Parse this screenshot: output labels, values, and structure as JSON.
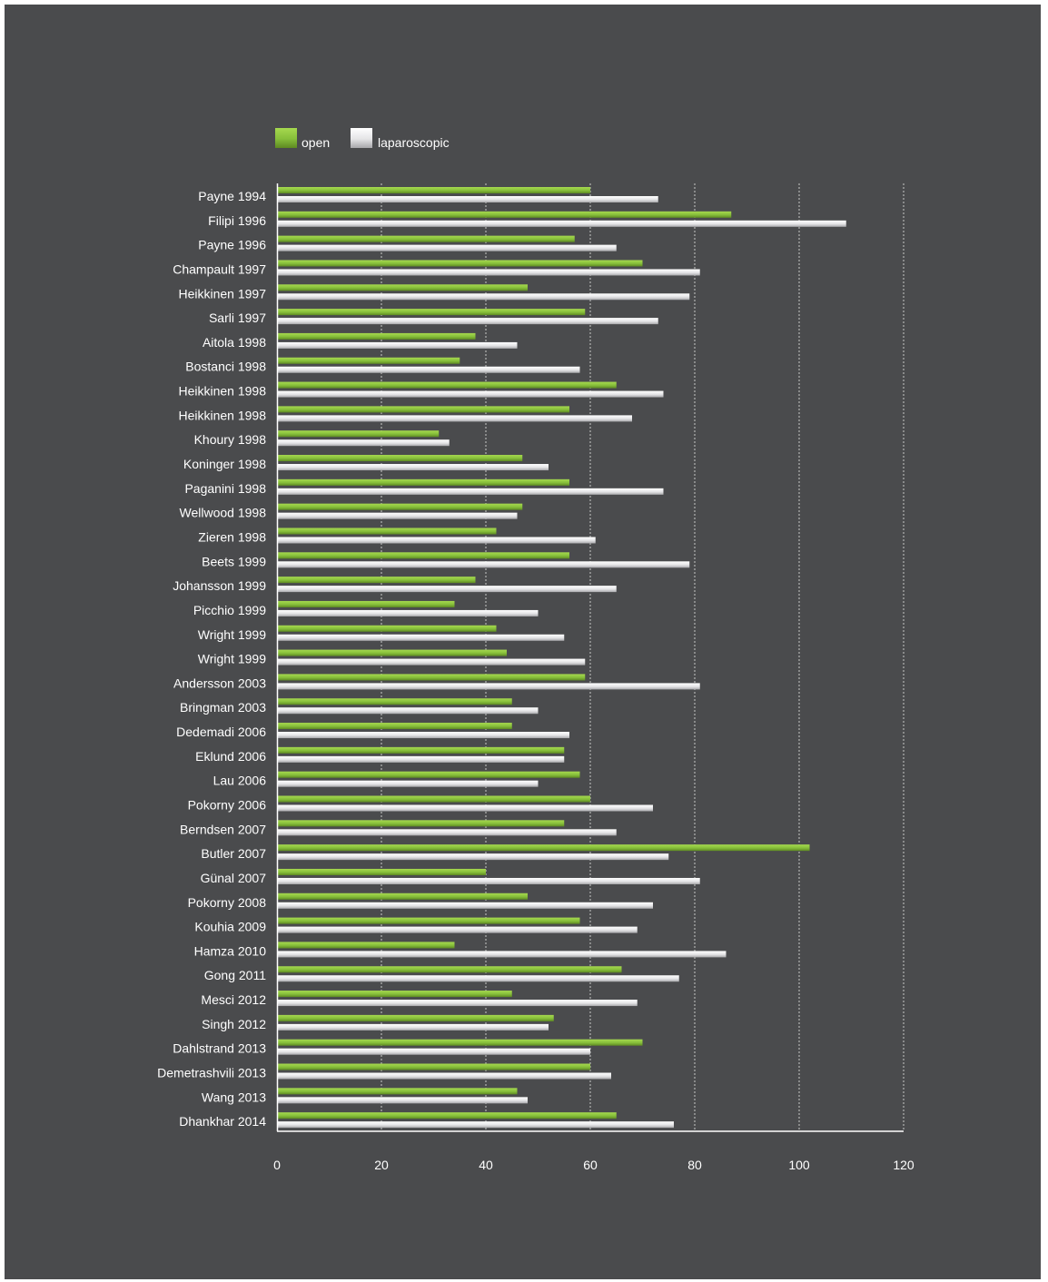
{
  "colors": {
    "background": "#4a4b4d",
    "open": "#8cc63f",
    "laparoscopic": "#e6e6e8",
    "text": "#ffffff",
    "grid": "#c8c8c8"
  },
  "chart_data": {
    "type": "bar",
    "orientation": "horizontal",
    "title": "",
    "xlabel": "",
    "ylabel": "",
    "xlim": [
      0,
      120
    ],
    "xticks": [
      0,
      20,
      40,
      60,
      80,
      100,
      120
    ],
    "grid": "vertical dotted",
    "legend": "top-left",
    "categories": [
      "Payne 1994",
      "Filipi 1996",
      "Payne 1996",
      "Champault 1997",
      "Heikkinen 1997",
      "Sarli 1997",
      "Aitola 1998",
      "Bostanci 1998",
      "Heikkinen 1998",
      "Heikkinen 1998",
      "Khoury 1998",
      "Koninger 1998",
      "Paganini 1998",
      "Wellwood 1998",
      "Zieren 1998",
      "Beets 1999",
      "Johansson 1999",
      "Picchio 1999",
      "Wright 1999",
      "Wright 1999",
      "Andersson 2003",
      "Bringman 2003",
      "Dedemadi 2006",
      "Eklund 2006",
      "Lau 2006",
      "Pokorny 2006",
      "Berndsen 2007",
      "Butler 2007",
      "Günal 2007",
      "Pokorny 2008",
      "Kouhia 2009",
      "Hamza 2010",
      "Gong 2011",
      "Mesci 2012",
      "Singh 2012",
      "Dahlstrand 2013",
      "Demetrashvili 2013",
      "Wang 2013",
      "Dhankhar 2014"
    ],
    "series": [
      {
        "name": "open",
        "color": "#8cc63f",
        "values": [
          60,
          87,
          57,
          70,
          48,
          59,
          38,
          35,
          65,
          56,
          31,
          47,
          56,
          47,
          42,
          56,
          38,
          34,
          42,
          44,
          59,
          45,
          45,
          55,
          58,
          60,
          55,
          102,
          40,
          48,
          58,
          34,
          66,
          45,
          53,
          70,
          60,
          46,
          65
        ]
      },
      {
        "name": "laparoscopic",
        "color": "#e6e6e8",
        "values": [
          73,
          109,
          65,
          81,
          79,
          73,
          46,
          58,
          74,
          68,
          33,
          52,
          74,
          46,
          61,
          79,
          65,
          50,
          55,
          59,
          81,
          50,
          56,
          55,
          50,
          72,
          65,
          75,
          81,
          72,
          69,
          86,
          77,
          69,
          52,
          60,
          64,
          48,
          76
        ]
      }
    ]
  }
}
